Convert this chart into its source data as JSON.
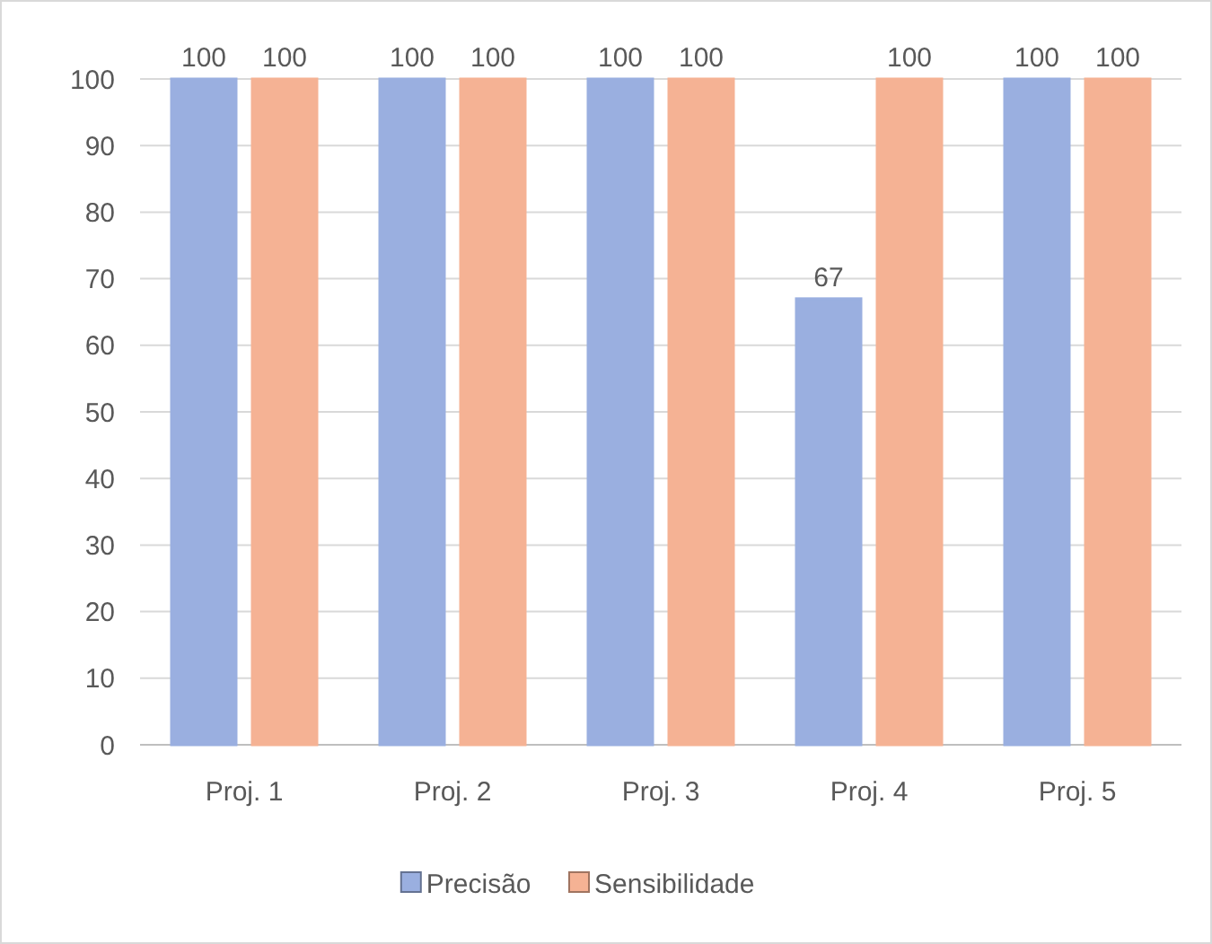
{
  "chart_data": {
    "type": "bar",
    "categories": [
      "Proj. 1",
      "Proj. 2",
      "Proj. 3",
      "Proj. 4",
      "Proj. 5"
    ],
    "series": [
      {
        "name": "Precisão",
        "color": "#9aafe0",
        "values": [
          100,
          100,
          100,
          67,
          100
        ]
      },
      {
        "name": "Sensibilidade",
        "color": "#f5b294",
        "values": [
          100,
          100,
          100,
          100,
          100
        ]
      }
    ],
    "ylim": [
      0,
      100
    ],
    "yticks": [
      0,
      10,
      20,
      30,
      40,
      50,
      60,
      70,
      80,
      90,
      100
    ],
    "grid": "y",
    "data_labels": true,
    "legend": "bottom"
  }
}
